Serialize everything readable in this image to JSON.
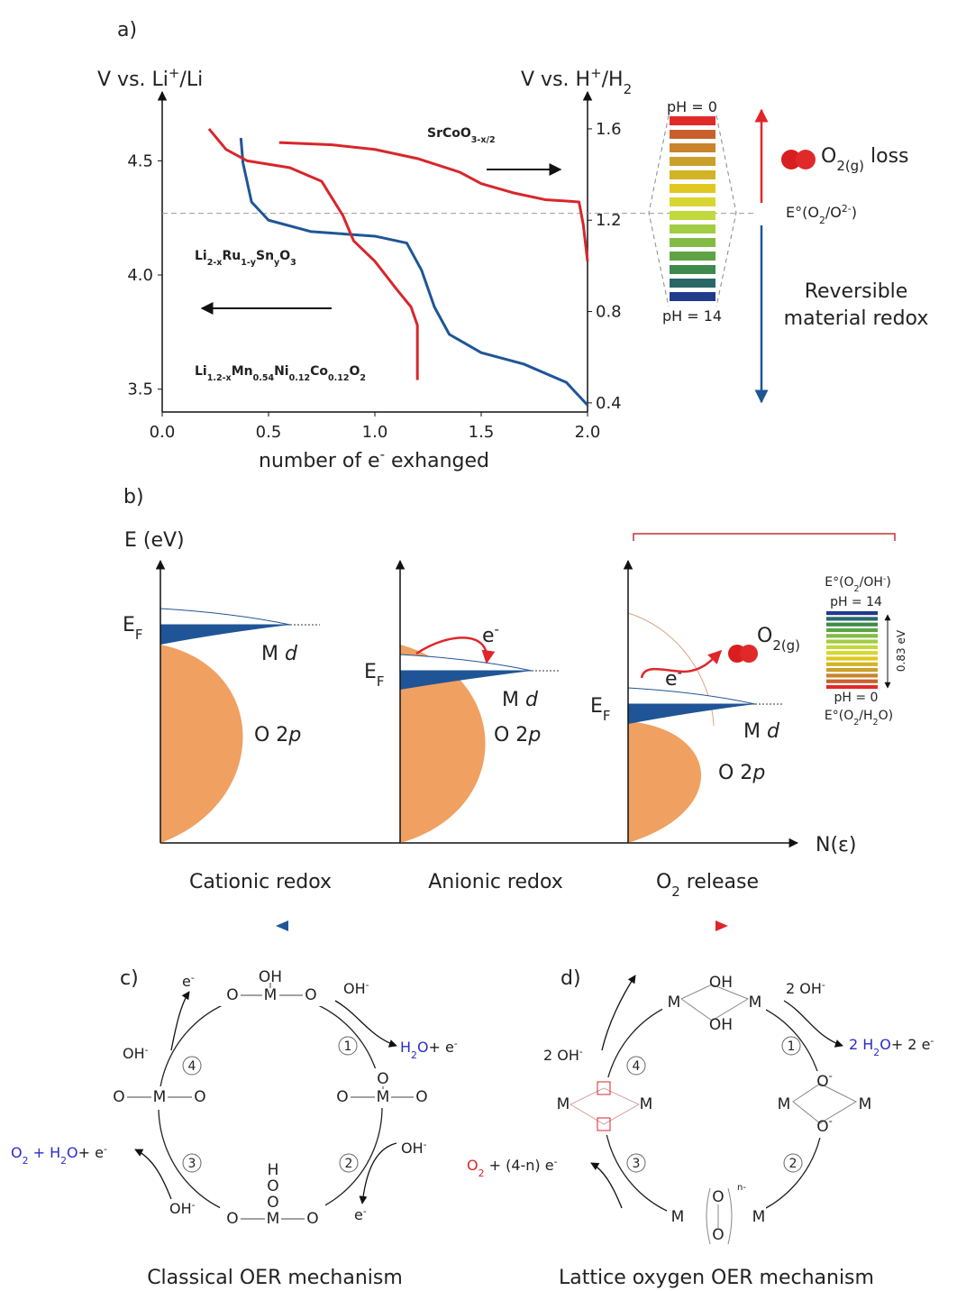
{
  "chart_data": {
    "type": "line",
    "panel_label": "a)",
    "ylabel": [
      "V vs. Li",
      {
        "sup": "+"
      },
      "/Li"
    ],
    "y2label": [
      "V vs. H",
      {
        "sup": "+"
      },
      "/H",
      {
        "sub": "2"
      }
    ],
    "xlabel": [
      "number of e",
      {
        "sup": "-"
      },
      " exhanged"
    ],
    "xlim": [
      0,
      2
    ],
    "xticks": [
      {
        "value": 0,
        "label": "0.0"
      },
      0.5,
      {
        "value": 1,
        "label": "1.0"
      },
      1.5,
      {
        "value": 2,
        "label": "2.0"
      }
    ],
    "ylim": [
      3.4,
      4.77
    ],
    "yticks": [
      3.5,
      {
        "value": 4,
        "label": "4.0"
      },
      4.5
    ],
    "y2lim": [
      0.36,
      1.73
    ],
    "y2ticks": [
      0.4,
      0.8,
      1.2,
      1.6
    ],
    "hline": 4.27,
    "series": [
      {
        "name": [
          "SrCoO",
          {
            "sub": "3-x/2"
          }
        ],
        "color": "#d8262b",
        "axis": "y2",
        "x": [
          0.55,
          0.8,
          1.0,
          1.2,
          1.4,
          1.5,
          1.65,
          1.8,
          1.96,
          1.98,
          2.0
        ],
        "values": [
          1.54,
          1.53,
          1.51,
          1.47,
          1.41,
          1.36,
          1.32,
          1.29,
          1.28,
          1.18,
          1.02
        ]
      },
      {
        "name": [
          "Li",
          {
            "sub": "2-x"
          },
          "Ru",
          {
            "sub": "1-y"
          },
          "Sn",
          {
            "sub": "y"
          },
          "O",
          {
            "sub": "3"
          }
        ],
        "color": "#1f5597",
        "x": [
          0.37,
          0.38,
          0.42,
          0.5,
          0.7,
          1.0,
          1.15,
          1.22,
          1.28,
          1.35,
          1.5,
          1.7,
          1.9,
          2.0
        ],
        "values": [
          4.6,
          4.49,
          4.32,
          4.24,
          4.19,
          4.17,
          4.14,
          4.02,
          3.86,
          3.74,
          3.66,
          3.61,
          3.53,
          3.43
        ]
      },
      {
        "name": [
          "Li",
          {
            "sub": "1.2-x"
          },
          "Mn",
          {
            "sub": "0.54"
          },
          "Ni",
          {
            "sub": "0.12"
          },
          "Co",
          {
            "sub": "0.12"
          },
          "O",
          {
            "sub": "2"
          }
        ],
        "color": "#d8262b",
        "x": [
          0.22,
          0.3,
          0.4,
          0.6,
          0.75,
          0.85,
          0.9,
          1.0,
          1.1,
          1.17,
          1.2,
          1.2
        ],
        "values": [
          4.64,
          4.55,
          4.5,
          4.47,
          4.41,
          4.26,
          4.15,
          4.06,
          3.94,
          3.86,
          3.78,
          3.54
        ]
      }
    ]
  },
  "panel_a_side": {
    "ph_top": "pH = 0",
    "ph_bottom": "pH = 14",
    "loss": [
      "O",
      {
        "sub": "2(g)"
      },
      " loss"
    ],
    "potential": [
      "E°(O",
      {
        "sub": "2"
      },
      "/O",
      {
        "sup": "2-"
      },
      ")"
    ],
    "redox": [
      "Reversible",
      "material redox"
    ]
  },
  "panel_b": {
    "panel_label": "b)",
    "y_axis": "E (eV)",
    "x_axis": "N(ε)",
    "columns": [
      {
        "fermi": [
          "E",
          {
            "sub": "F"
          }
        ],
        "metal": [
          "M ",
          {
            "i": "d"
          }
        ],
        "oxygen": [
          "O 2",
          {
            "i": "p"
          }
        ],
        "caption": "Cationic redox"
      },
      {
        "fermi": [
          "E",
          {
            "sub": "F"
          }
        ],
        "metal": [
          "M ",
          {
            "i": "d"
          }
        ],
        "oxygen": [
          "O 2",
          {
            "i": "p"
          }
        ],
        "electron": [
          "e",
          {
            "sup": "-"
          }
        ],
        "caption": "Anionic redox"
      },
      {
        "fermi": [
          "E",
          {
            "sub": "F"
          }
        ],
        "metal": [
          "M ",
          {
            "i": "d"
          }
        ],
        "oxygen": [
          "O 2",
          {
            "i": "p"
          }
        ],
        "electron": [
          "e",
          {
            "sup": "-"
          }
        ],
        "gas": [
          "O",
          {
            "sub": "2(g)"
          }
        ],
        "caption": [
          "O",
          {
            "sub": "2"
          },
          " release"
        ]
      }
    ],
    "ph_scale": {
      "upper_potential": [
        "E°(O",
        {
          "sub": "2"
        },
        "/OH",
        {
          "sup": "-"
        },
        ")"
      ],
      "top": "pH = 14",
      "gap": "0.83 eV",
      "bottom": "pH = 0",
      "lower_potential": [
        "E°(O",
        {
          "sub": "2"
        },
        "/H",
        {
          "sub": "2"
        },
        "O)"
      ]
    }
  },
  "panel_c": {
    "panel_label": "c)",
    "caption": "Classical OER mechanism",
    "steps": [
      "1",
      "2",
      "3",
      "4"
    ],
    "labels": {
      "top_electron": [
        "e",
        {
          "sup": "-"
        }
      ],
      "step1_in": [
        "OH",
        {
          "sup": "-"
        }
      ],
      "step1_out": [
        "H",
        {
          "sub": "2"
        },
        "O",
        "+ e",
        {
          "sup": "-"
        }
      ],
      "step4_in": [
        "OH",
        {
          "sup": "-"
        }
      ],
      "step3_out": [
        "O",
        {
          "sub": "2"
        },
        " + H",
        {
          "sub": "2"
        },
        "O",
        "+ e",
        {
          "sup": "-"
        }
      ],
      "step2_in": [
        "OH",
        {
          "sup": "-"
        }
      ],
      "step2_out": [
        "e",
        {
          "sup": "-"
        }
      ],
      "step3_in": [
        "OH",
        {
          "sup": "-"
        }
      ]
    },
    "structures": {
      "top": [
        "O",
        "M",
        "O",
        "OH"
      ],
      "right": [
        "O",
        "M",
        "O",
        "O"
      ],
      "bottom": [
        "O",
        "M",
        "O",
        "H",
        "O",
        "O"
      ],
      "left": [
        "O",
        "M",
        "O"
      ]
    }
  },
  "panel_d": {
    "panel_label": "d)",
    "caption": "Lattice oxygen OER mechanism",
    "steps": [
      "1",
      "2",
      "3",
      "4"
    ],
    "labels": {
      "step1_in": [
        "2 OH",
        {
          "sup": "-"
        }
      ],
      "step1_out": [
        "2 H",
        {
          "sub": "2"
        },
        "O",
        "+ 2 e",
        {
          "sup": "-"
        }
      ],
      "step4_in": [
        "2 OH",
        {
          "sup": "-"
        }
      ],
      "step3_out": [
        "O",
        {
          "sub": "2"
        },
        " + (4-n) e",
        {
          "sup": "-"
        }
      ]
    },
    "structures": {
      "top": [
        "M",
        "OH",
        "OH",
        "M"
      ],
      "right": [
        "M",
        [
          "O",
          {
            "sup": "-"
          }
        ],
        [
          "O",
          {
            "sup": "-"
          }
        ],
        "M"
      ],
      "bottom": [
        "M",
        "O",
        "O",
        "M",
        "n-"
      ],
      "left": [
        "M",
        "M"
      ]
    }
  }
}
